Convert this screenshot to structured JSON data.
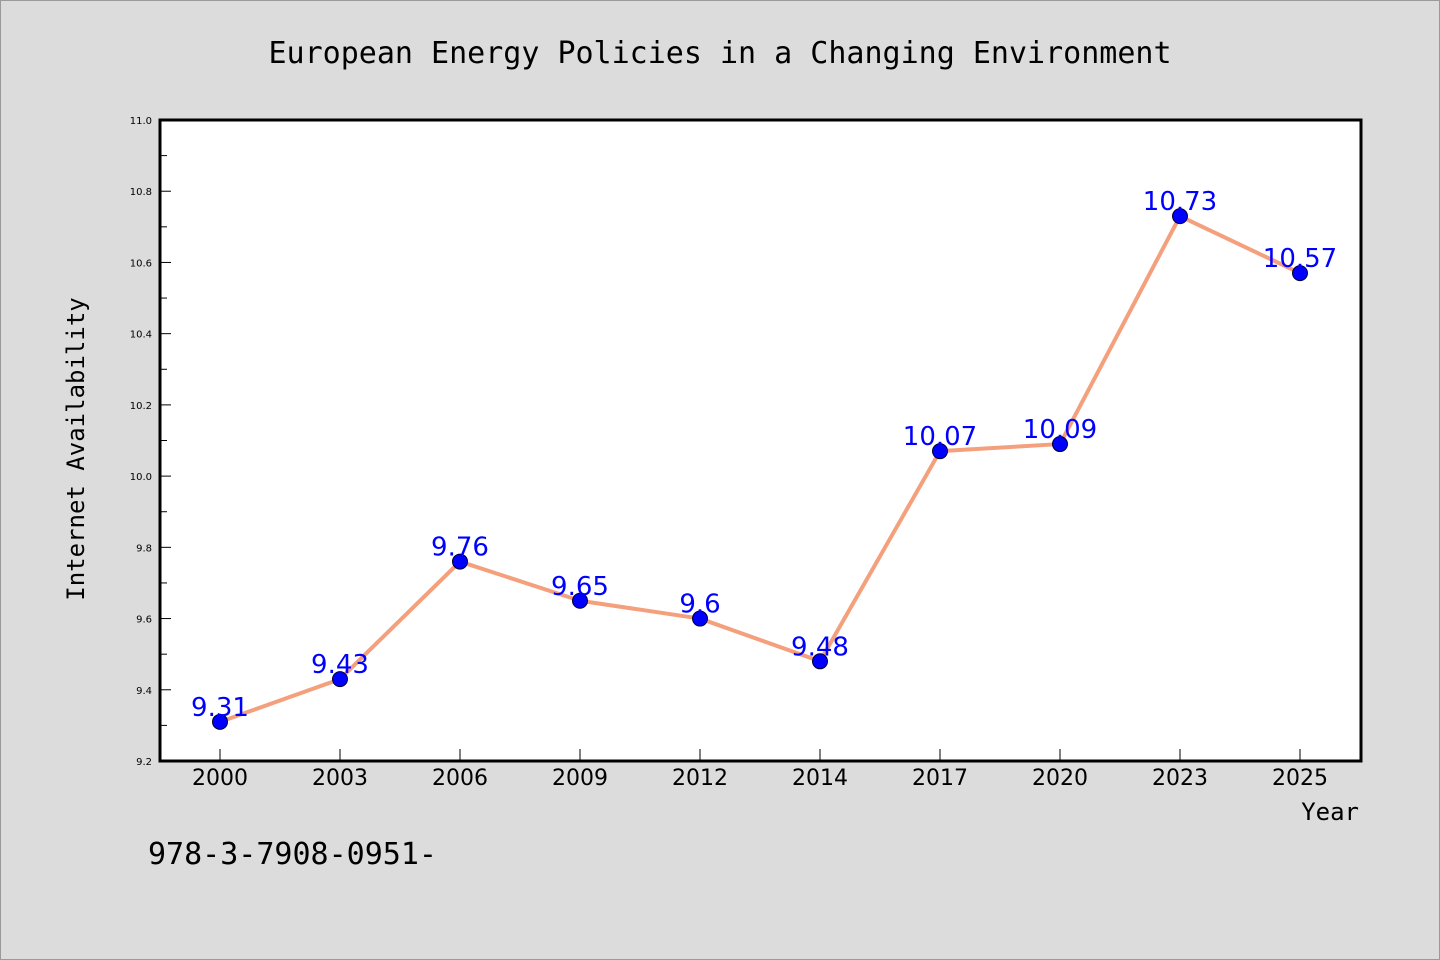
{
  "chart_data": {
    "type": "line",
    "title": "European Energy Policies in a Changing Environment",
    "xlabel": "Year",
    "ylabel": "Internet Availability",
    "categories": [
      "2000",
      "2003",
      "2006",
      "2009",
      "2012",
      "2014",
      "2017",
      "2020",
      "2023",
      "2025"
    ],
    "series": [
      {
        "values": [
          9.31,
          9.43,
          9.76,
          9.65,
          9.6,
          9.48,
          10.07,
          10.09,
          10.73,
          10.57
        ]
      }
    ],
    "data_labels": [
      "9.31",
      "9.43",
      "9.76",
      "9.65",
      "9.6",
      "9.48",
      "10.07",
      "10.09",
      "10.73",
      "10.57"
    ],
    "ylim": [
      9.2,
      11.0
    ],
    "yticks": [
      "9.2",
      "9.4",
      "9.6",
      "9.8",
      "10.0",
      "10.2",
      "10.4",
      "10.6",
      "10.8",
      "11.0"
    ],
    "grid": false,
    "legend": "none",
    "colors": {
      "line": "#f4a07c",
      "marker_fill": "#0000ff",
      "marker_edge": "#000033",
      "data_label": "#0000ff",
      "plot_background": "#ffffff",
      "figure_background": "#dcdcdc"
    }
  },
  "footnote": "978-3-7908-0951-"
}
